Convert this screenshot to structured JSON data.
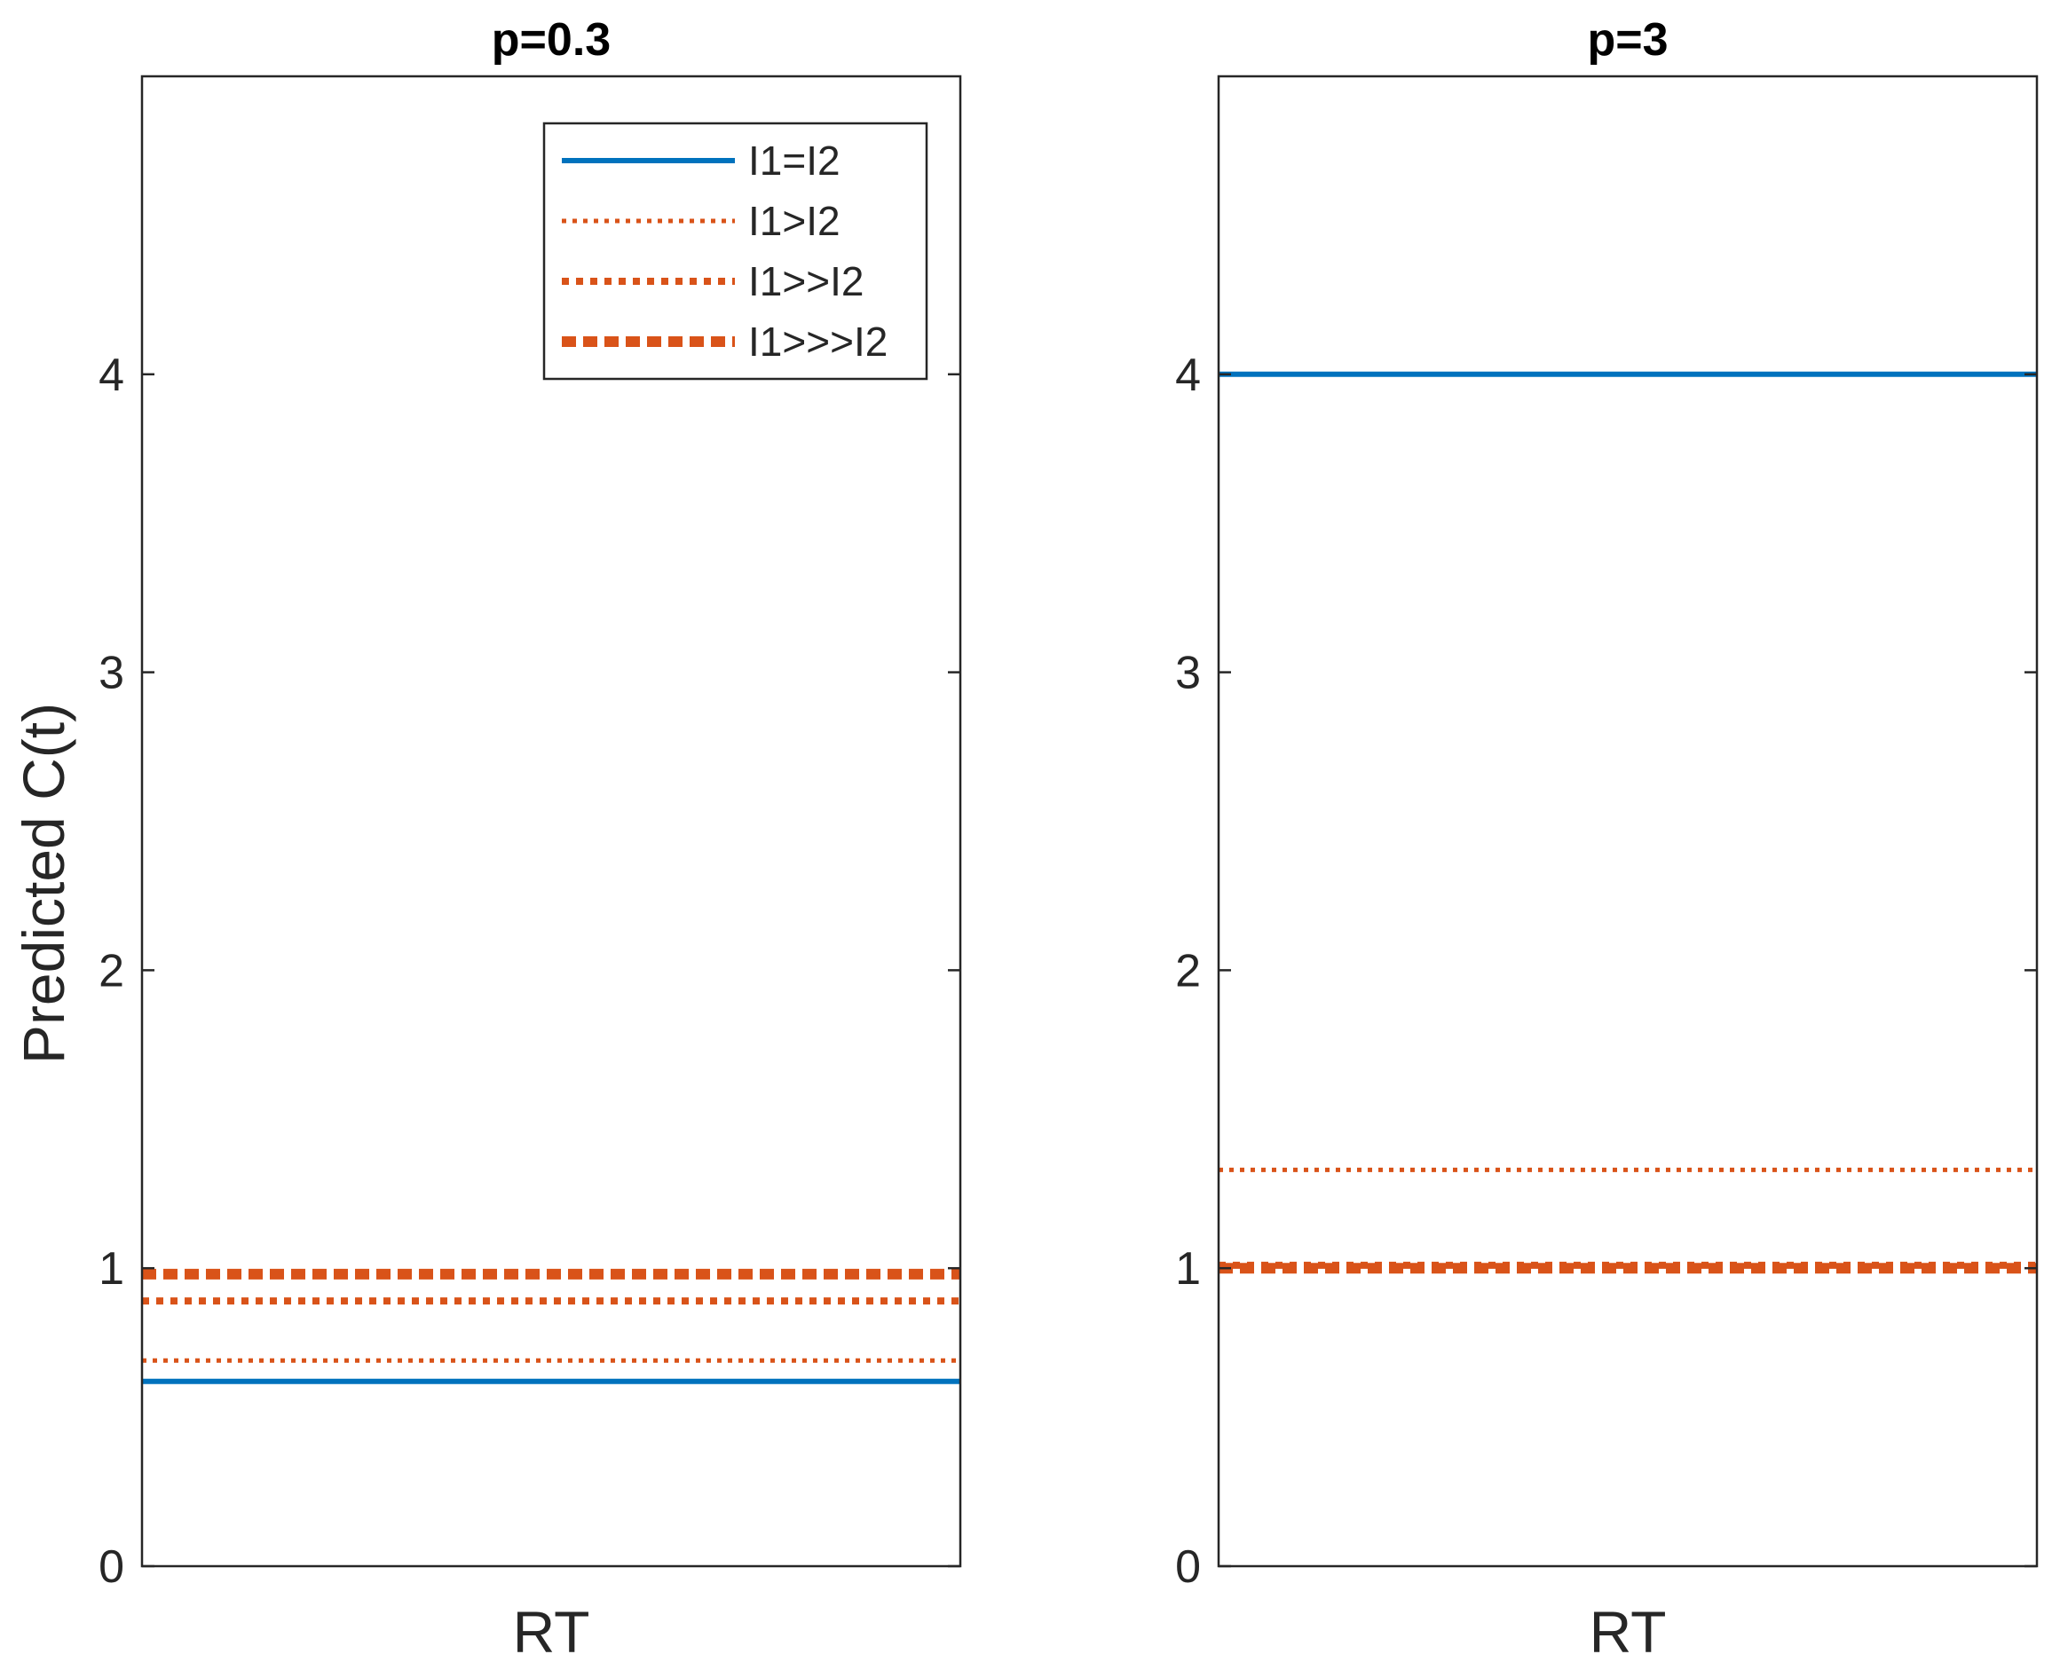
{
  "chart_data": [
    {
      "type": "line",
      "title": "p=0.3",
      "xlabel": "RT",
      "ylabel": "Predicted C(t)",
      "ylim": [
        0,
        5
      ],
      "yticks": [
        0,
        1,
        2,
        3,
        4
      ],
      "grid": false,
      "legend": "top-right",
      "series": [
        {
          "name": "I1=I2",
          "value": 0.62,
          "color": "#0072BD",
          "style": "solid"
        },
        {
          "name": "I1>I2",
          "value": 0.69,
          "color": "#D95319",
          "style": "dotted-thin"
        },
        {
          "name": "I1>>I2",
          "value": 0.89,
          "color": "#D95319",
          "style": "dotted-medium"
        },
        {
          "name": "I1>>>I2",
          "value": 0.98,
          "color": "#D95319",
          "style": "dashed-thick"
        }
      ]
    },
    {
      "type": "line",
      "title": "p=3",
      "xlabel": "RT",
      "ylabel": "",
      "ylim": [
        0,
        5
      ],
      "yticks": [
        0,
        1,
        2,
        3,
        4
      ],
      "grid": false,
      "series": [
        {
          "name": "I1=I2",
          "value": 4.0,
          "color": "#0072BD",
          "style": "solid"
        },
        {
          "name": "I1>I2",
          "value": 1.33,
          "color": "#D95319",
          "style": "dotted-thin"
        },
        {
          "name": "I1>>I2",
          "value": 1.01,
          "color": "#D95319",
          "style": "dotted-medium"
        },
        {
          "name": "I1>>>I2",
          "value": 1.0,
          "color": "#D95319",
          "style": "dashed-thick"
        }
      ]
    }
  ]
}
